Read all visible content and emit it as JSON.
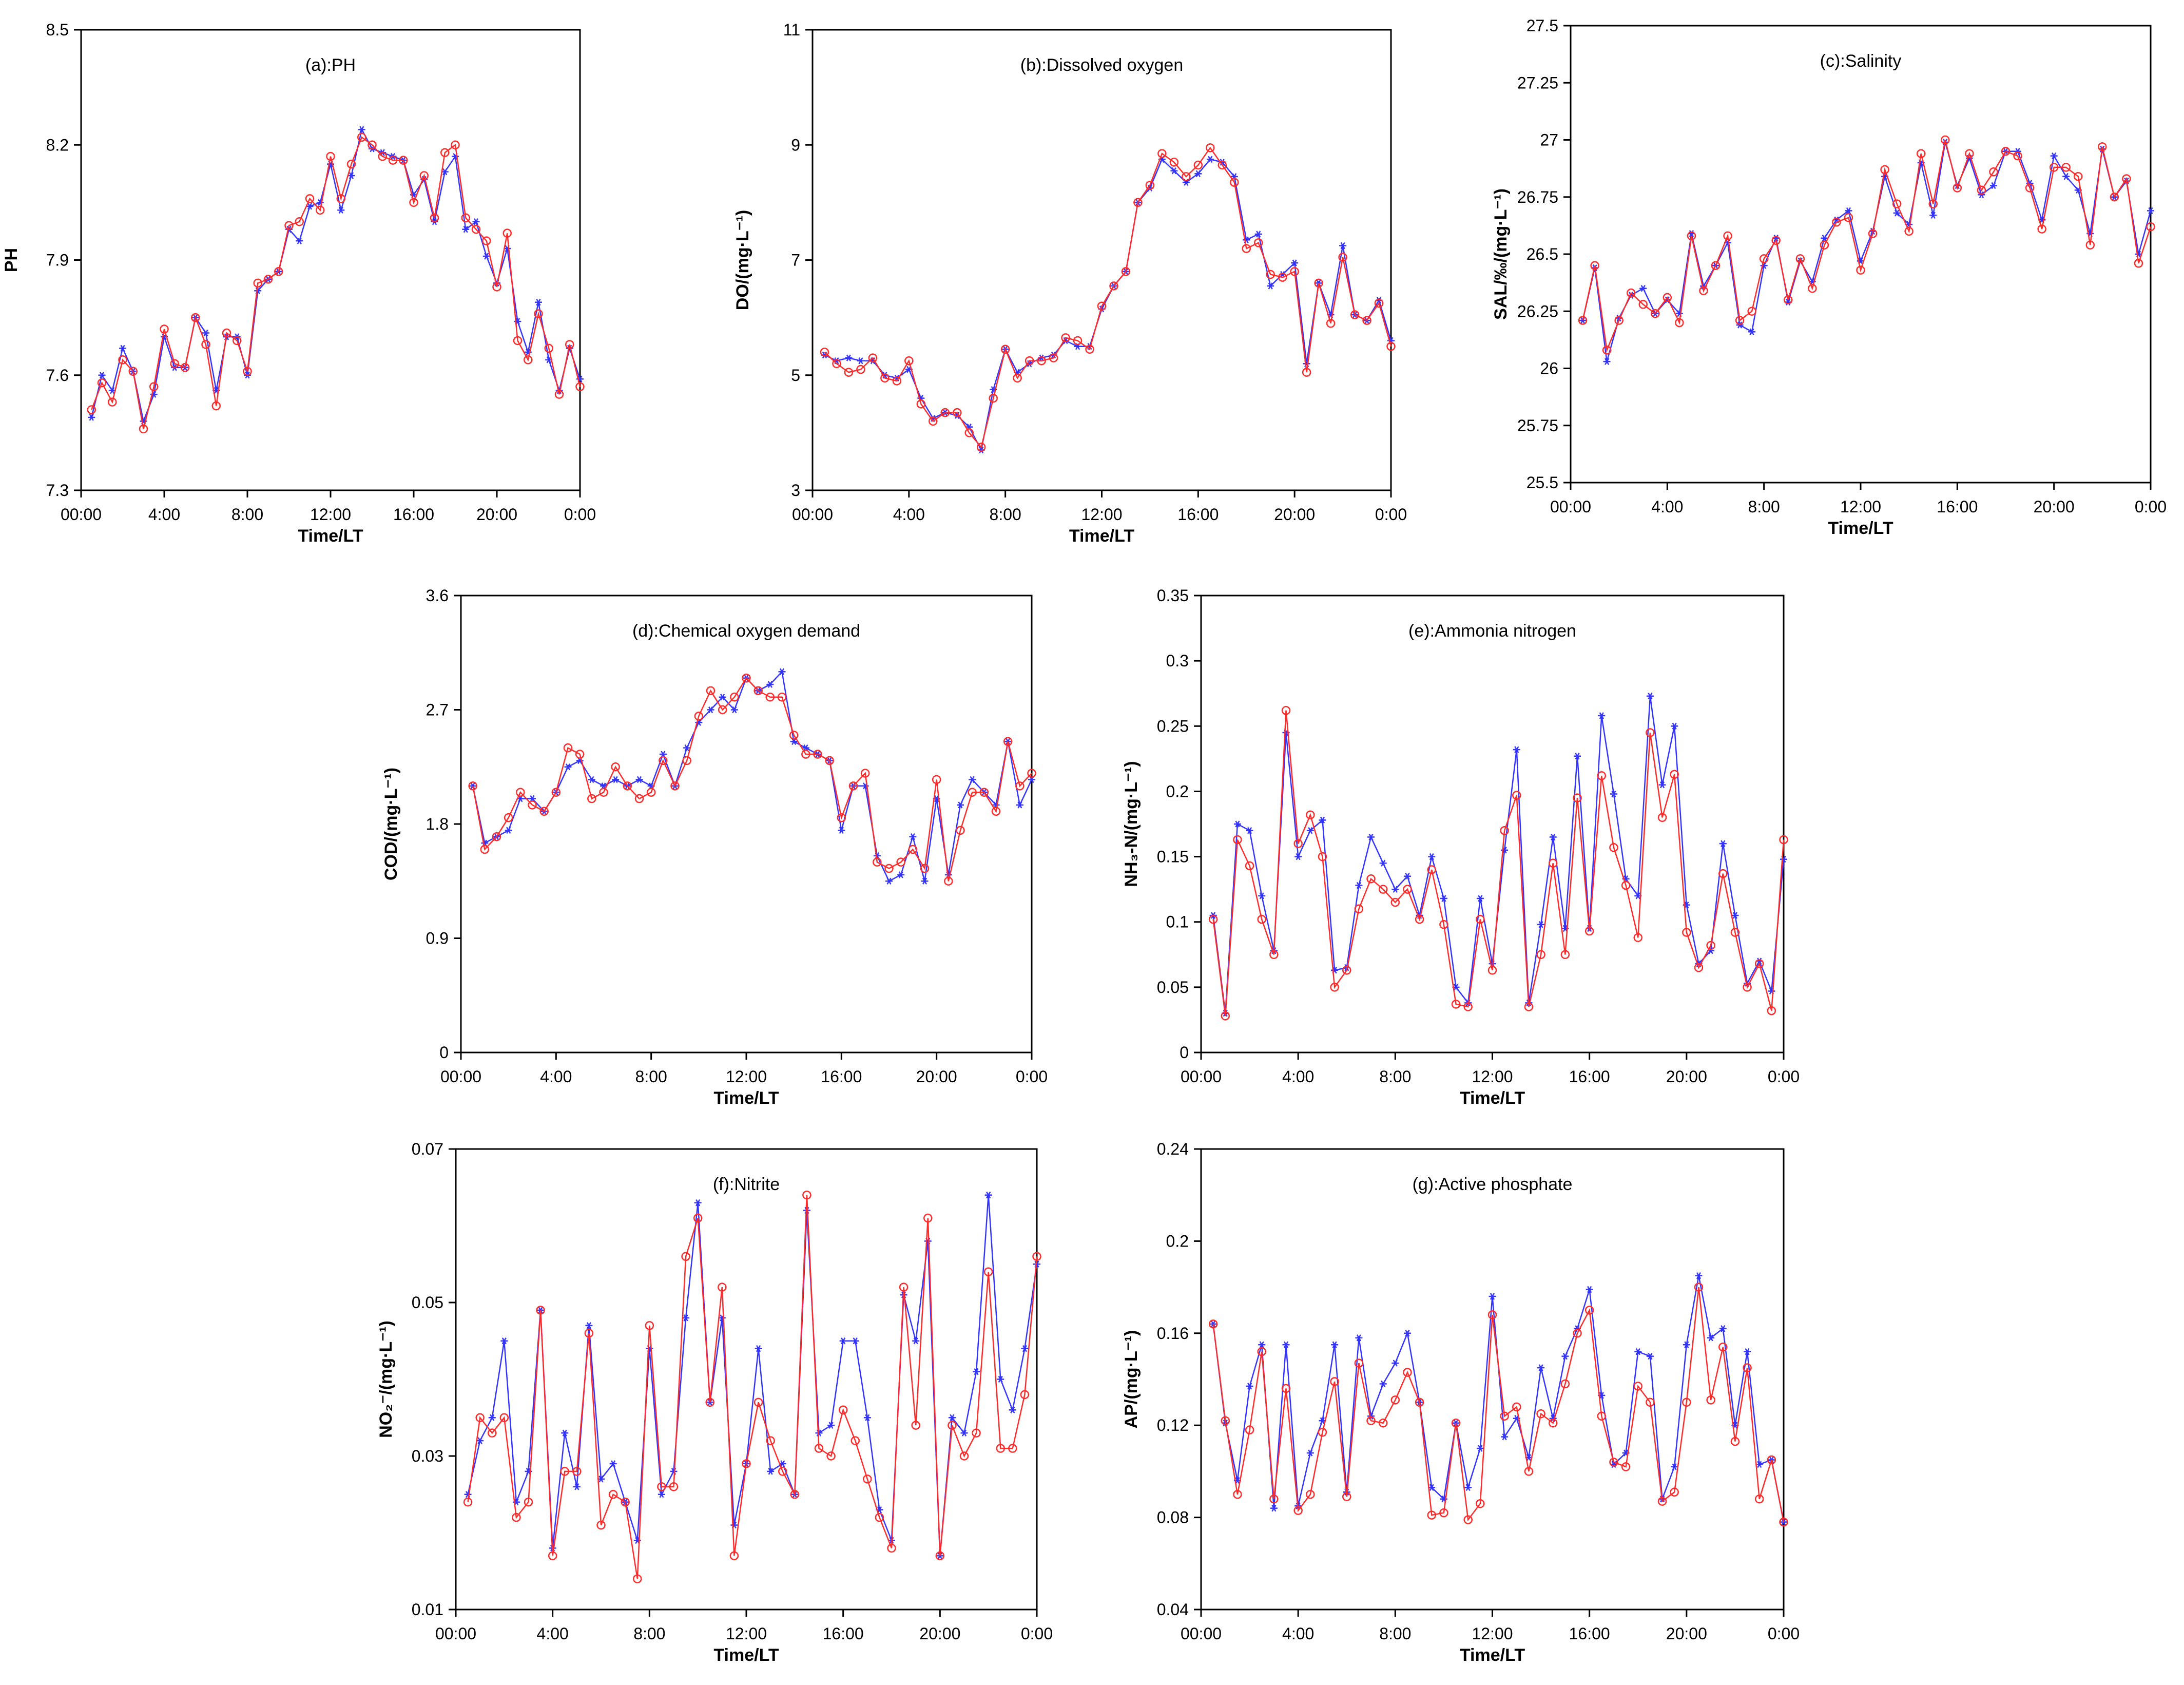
{
  "colors": {
    "observed": "#3333ff",
    "predicted": "#ff2a2a",
    "axis": "#000000"
  },
  "chart_data": [
    {
      "type": "line",
      "title": "(a):PH",
      "xlabel": "Time/LT",
      "ylabel": "PH",
      "xticks": [
        "00:00",
        "4:00",
        "8:00",
        "12:00",
        "16:00",
        "20:00",
        "0:00"
      ],
      "xlim": [
        0,
        24
      ],
      "ylim": [
        7.3,
        8.5
      ],
      "yticks": [
        7.3,
        7.6,
        7.9,
        8.2,
        8.5
      ],
      "ytick_labels": [
        "7.3",
        "7.6",
        "7.9",
        "8.2",
        "8.5"
      ],
      "series": [
        {
          "marker": "star",
          "color": "#3333ff",
          "values": [
            7.49,
            7.6,
            7.56,
            7.67,
            7.61,
            7.48,
            7.55,
            7.7,
            7.62,
            7.62,
            7.75,
            7.71,
            7.56,
            7.7,
            7.7,
            7.6,
            7.82,
            7.85,
            7.87,
            7.98,
            7.95,
            8.04,
            8.05,
            8.15,
            8.03,
            8.12,
            8.24,
            8.19,
            8.18,
            8.17,
            8.16,
            8.07,
            8.11,
            8.0,
            8.13,
            8.17,
            7.98,
            8.0,
            7.91,
            7.84,
            7.93,
            7.74,
            7.66,
            7.79,
            7.64,
            7.56,
            7.67,
            7.59
          ]
        },
        {
          "marker": "circle",
          "color": "#ff2a2a",
          "values": [
            7.51,
            7.58,
            7.53,
            7.64,
            7.61,
            7.46,
            7.57,
            7.72,
            7.63,
            7.62,
            7.75,
            7.68,
            7.52,
            7.71,
            7.69,
            7.61,
            7.84,
            7.85,
            7.87,
            7.99,
            8.0,
            8.06,
            8.03,
            8.17,
            8.06,
            8.15,
            8.22,
            8.2,
            8.17,
            8.16,
            8.16,
            8.05,
            8.12,
            8.01,
            8.18,
            8.2,
            8.01,
            7.98,
            7.95,
            7.83,
            7.97,
            7.69,
            7.64,
            7.76,
            7.67,
            7.55,
            7.68,
            7.57
          ]
        }
      ]
    },
    {
      "type": "line",
      "title": "(b):Dissolved oxygen",
      "xlabel": "Time/LT",
      "ylabel": "DO/(mg·L⁻¹)",
      "xticks": [
        "00:00",
        "4:00",
        "8:00",
        "12:00",
        "16:00",
        "20:00",
        "0:00"
      ],
      "xlim": [
        0,
        24
      ],
      "ylim": [
        3,
        11
      ],
      "yticks": [
        3,
        5,
        7,
        9,
        11
      ],
      "ytick_labels": [
        "3",
        "5",
        "7",
        "9",
        "11"
      ],
      "series": [
        {
          "marker": "star",
          "color": "#3333ff",
          "values": [
            5.35,
            5.25,
            5.3,
            5.25,
            5.25,
            5.0,
            4.95,
            5.1,
            4.6,
            4.25,
            4.35,
            4.3,
            4.1,
            3.7,
            4.75,
            5.45,
            5.05,
            5.2,
            5.3,
            5.35,
            5.6,
            5.5,
            5.5,
            6.15,
            6.55,
            6.8,
            8.0,
            8.25,
            8.75,
            8.55,
            8.35,
            8.5,
            8.75,
            8.7,
            8.45,
            7.35,
            7.45,
            6.55,
            6.75,
            6.95,
            5.2,
            6.6,
            6.05,
            7.25,
            6.05,
            5.95,
            6.3,
            5.6
          ]
        },
        {
          "marker": "circle",
          "color": "#ff2a2a",
          "values": [
            5.4,
            5.2,
            5.05,
            5.1,
            5.3,
            4.95,
            4.9,
            5.25,
            4.5,
            4.2,
            4.35,
            4.35,
            4.0,
            3.75,
            4.6,
            5.45,
            4.95,
            5.25,
            5.25,
            5.3,
            5.65,
            5.6,
            5.45,
            6.2,
            6.55,
            6.8,
            8.0,
            8.3,
            8.85,
            8.7,
            8.45,
            8.65,
            8.95,
            8.65,
            8.35,
            7.2,
            7.3,
            6.75,
            6.7,
            6.8,
            5.05,
            6.6,
            5.9,
            7.05,
            6.05,
            5.95,
            6.25,
            5.5
          ]
        }
      ]
    },
    {
      "type": "line",
      "title": "(c):Salinity",
      "xlabel": "Time/LT",
      "ylabel": "SAL/‰/(mg·L⁻¹)",
      "xticks": [
        "00:00",
        "4:00",
        "8:00",
        "12:00",
        "16:00",
        "20:00",
        "0:00"
      ],
      "xlim": [
        0,
        24
      ],
      "ylim": [
        25.5,
        27.5
      ],
      "yticks": [
        25.5,
        25.75,
        26,
        26.25,
        26.5,
        26.75,
        27,
        27.25,
        27.5
      ],
      "ytick_labels": [
        "25.5",
        "25.75",
        "26",
        "26.25",
        "26.5",
        "26.75",
        "27",
        "27.25",
        "27.5"
      ],
      "series": [
        {
          "marker": "star",
          "color": "#3333ff",
          "values": [
            26.21,
            26.44,
            26.03,
            26.22,
            26.32,
            26.35,
            26.24,
            26.3,
            26.24,
            26.59,
            26.36,
            26.45,
            26.55,
            26.19,
            26.16,
            26.45,
            26.57,
            26.29,
            26.47,
            26.38,
            26.57,
            26.65,
            26.69,
            26.47,
            26.6,
            26.84,
            26.68,
            26.63,
            26.9,
            26.67,
            26.99,
            26.8,
            26.92,
            26.76,
            26.8,
            26.95,
            26.95,
            26.81,
            26.65,
            26.93,
            26.84,
            26.78,
            26.59,
            26.96,
            26.75,
            26.82,
            26.5,
            26.69
          ]
        },
        {
          "marker": "circle",
          "color": "#ff2a2a",
          "values": [
            26.21,
            26.45,
            26.08,
            26.21,
            26.33,
            26.28,
            26.24,
            26.31,
            26.2,
            26.58,
            26.34,
            26.45,
            26.58,
            26.21,
            26.25,
            26.48,
            26.56,
            26.3,
            26.48,
            26.35,
            26.54,
            26.64,
            26.66,
            26.43,
            26.59,
            26.87,
            26.72,
            26.6,
            26.94,
            26.72,
            27.0,
            26.79,
            26.94,
            26.78,
            26.86,
            26.95,
            26.93,
            26.79,
            26.61,
            26.88,
            26.88,
            26.84,
            26.54,
            26.97,
            26.75,
            26.83,
            26.46,
            26.62
          ]
        }
      ]
    },
    {
      "type": "line",
      "title": "(d):Chemical oxygen demand",
      "xlabel": "Time/LT",
      "ylabel": "COD/(mg·L⁻¹)",
      "xticks": [
        "00:00",
        "4:00",
        "8:00",
        "12:00",
        "16:00",
        "20:00",
        "0:00"
      ],
      "xlim": [
        0,
        24
      ],
      "ylim": [
        0,
        3.6
      ],
      "yticks": [
        0,
        0.9,
        1.8,
        2.7,
        3.6
      ],
      "ytick_labels": [
        "0",
        "0.9",
        "1.8",
        "2.7",
        "3.6"
      ],
      "series": [
        {
          "marker": "star",
          "color": "#3333ff",
          "values": [
            2.1,
            1.65,
            1.7,
            1.75,
            2.0,
            2.0,
            1.9,
            2.05,
            2.25,
            2.3,
            2.15,
            2.1,
            2.15,
            2.1,
            2.15,
            2.1,
            2.35,
            2.1,
            2.4,
            2.6,
            2.7,
            2.8,
            2.7,
            2.95,
            2.85,
            2.9,
            3.0,
            2.45,
            2.4,
            2.35,
            2.3,
            1.75,
            2.1,
            2.1,
            1.55,
            1.35,
            1.4,
            1.7,
            1.35,
            2.0,
            1.4,
            1.95,
            2.15,
            2.05,
            1.95,
            2.45,
            1.95,
            2.15
          ]
        },
        {
          "marker": "circle",
          "color": "#ff2a2a",
          "values": [
            2.1,
            1.6,
            1.7,
            1.85,
            2.05,
            1.95,
            1.9,
            2.05,
            2.4,
            2.35,
            2.0,
            2.05,
            2.25,
            2.1,
            2.0,
            2.05,
            2.3,
            2.1,
            2.3,
            2.65,
            2.85,
            2.7,
            2.8,
            2.95,
            2.85,
            2.8,
            2.8,
            2.5,
            2.35,
            2.35,
            2.3,
            1.85,
            2.1,
            2.2,
            1.5,
            1.45,
            1.5,
            1.6,
            1.45,
            2.15,
            1.35,
            1.75,
            2.05,
            2.05,
            1.9,
            2.45,
            2.1,
            2.2
          ]
        }
      ]
    },
    {
      "type": "line",
      "title": "(e):Ammonia nitrogen",
      "xlabel": "Time/LT",
      "ylabel": "NH₃-N/(mg·L⁻¹)",
      "xticks": [
        "00:00",
        "4:00",
        "8:00",
        "12:00",
        "16:00",
        "20:00",
        "0:00"
      ],
      "xlim": [
        0,
        24
      ],
      "ylim": [
        0,
        0.35
      ],
      "yticks": [
        0,
        0.05,
        0.1,
        0.15,
        0.2,
        0.25,
        0.3,
        0.35
      ],
      "ytick_labels": [
        "0",
        "0.05",
        "0.1",
        "0.15",
        "0.2",
        "0.25",
        "0.3",
        "0.35"
      ],
      "series": [
        {
          "marker": "star",
          "color": "#3333ff",
          "values": [
            0.105,
            0.03,
            0.175,
            0.17,
            0.12,
            0.078,
            0.245,
            0.15,
            0.17,
            0.178,
            0.063,
            0.065,
            0.128,
            0.165,
            0.145,
            0.125,
            0.135,
            0.105,
            0.15,
            0.118,
            0.05,
            0.038,
            0.118,
            0.068,
            0.155,
            0.232,
            0.038,
            0.098,
            0.165,
            0.095,
            0.227,
            0.095,
            0.258,
            0.198,
            0.133,
            0.12,
            0.273,
            0.205,
            0.25,
            0.113,
            0.068,
            0.078,
            0.16,
            0.105,
            0.053,
            0.07,
            0.047,
            0.148
          ]
        },
        {
          "marker": "circle",
          "color": "#ff2a2a",
          "values": [
            0.102,
            0.028,
            0.163,
            0.143,
            0.102,
            0.075,
            0.262,
            0.16,
            0.182,
            0.15,
            0.05,
            0.063,
            0.11,
            0.133,
            0.125,
            0.115,
            0.125,
            0.102,
            0.14,
            0.098,
            0.037,
            0.035,
            0.102,
            0.063,
            0.17,
            0.197,
            0.035,
            0.075,
            0.145,
            0.075,
            0.195,
            0.093,
            0.212,
            0.157,
            0.128,
            0.088,
            0.245,
            0.18,
            0.213,
            0.092,
            0.065,
            0.082,
            0.137,
            0.092,
            0.05,
            0.068,
            0.032,
            0.163
          ]
        }
      ]
    },
    {
      "type": "line",
      "title": "(f):Nitrite",
      "xlabel": "Time/LT",
      "ylabel": "NO₂⁻/(mg·L⁻¹)",
      "xticks": [
        "00:00",
        "4:00",
        "8:00",
        "12:00",
        "16:00",
        "20:00",
        "0:00"
      ],
      "xlim": [
        0,
        24
      ],
      "ylim": [
        0.01,
        0.07
      ],
      "yticks": [
        0.01,
        0.03,
        0.05,
        0.07
      ],
      "ytick_labels": [
        "0.01",
        "0.03",
        "0.05",
        "0.07"
      ],
      "series": [
        {
          "marker": "star",
          "color": "#3333ff",
          "values": [
            0.025,
            0.032,
            0.035,
            0.045,
            0.024,
            0.028,
            0.049,
            0.018,
            0.033,
            0.026,
            0.047,
            0.027,
            0.029,
            0.024,
            0.019,
            0.044,
            0.025,
            0.028,
            0.048,
            0.063,
            0.037,
            0.048,
            0.021,
            0.029,
            0.044,
            0.028,
            0.029,
            0.025,
            0.062,
            0.033,
            0.034,
            0.045,
            0.045,
            0.035,
            0.023,
            0.019,
            0.051,
            0.045,
            0.058,
            0.017,
            0.035,
            0.033,
            0.041,
            0.064,
            0.04,
            0.036,
            0.044,
            0.055
          ]
        },
        {
          "marker": "circle",
          "color": "#ff2a2a",
          "values": [
            0.024,
            0.035,
            0.033,
            0.035,
            0.022,
            0.024,
            0.049,
            0.017,
            0.028,
            0.028,
            0.046,
            0.021,
            0.025,
            0.024,
            0.014,
            0.047,
            0.026,
            0.026,
            0.056,
            0.061,
            0.037,
            0.052,
            0.017,
            0.029,
            0.037,
            0.032,
            0.028,
            0.025,
            0.064,
            0.031,
            0.03,
            0.036,
            0.032,
            0.027,
            0.022,
            0.018,
            0.052,
            0.034,
            0.061,
            0.017,
            0.034,
            0.03,
            0.033,
            0.054,
            0.031,
            0.031,
            0.038,
            0.056
          ]
        }
      ]
    },
    {
      "type": "line",
      "title": "(g):Active phosphate",
      "xlabel": "Time/LT",
      "ylabel": "AP/(mg·L⁻¹)",
      "xticks": [
        "00:00",
        "4:00",
        "8:00",
        "12:00",
        "16:00",
        "20:00",
        "0:00"
      ],
      "xlim": [
        0,
        24
      ],
      "ylim": [
        0.04,
        0.24
      ],
      "yticks": [
        0.04,
        0.08,
        0.12,
        0.16,
        0.2,
        0.24
      ],
      "ytick_labels": [
        "0.04",
        "0.08",
        "0.12",
        "0.16",
        "0.2",
        "0.24"
      ],
      "series": [
        {
          "marker": "star",
          "color": "#3333ff",
          "values": [
            0.164,
            0.121,
            0.096,
            0.137,
            0.155,
            0.084,
            0.155,
            0.085,
            0.108,
            0.122,
            0.155,
            0.091,
            0.158,
            0.124,
            0.138,
            0.147,
            0.16,
            0.13,
            0.093,
            0.088,
            0.121,
            0.093,
            0.11,
            0.176,
            0.115,
            0.123,
            0.106,
            0.145,
            0.123,
            0.15,
            0.162,
            0.179,
            0.133,
            0.103,
            0.108,
            0.152,
            0.15,
            0.088,
            0.102,
            0.155,
            0.185,
            0.158,
            0.162,
            0.12,
            0.152,
            0.103,
            0.105,
            0.078
          ]
        },
        {
          "marker": "circle",
          "color": "#ff2a2a",
          "values": [
            0.164,
            0.122,
            0.09,
            0.118,
            0.152,
            0.088,
            0.136,
            0.083,
            0.09,
            0.117,
            0.139,
            0.089,
            0.147,
            0.122,
            0.121,
            0.131,
            0.143,
            0.13,
            0.081,
            0.082,
            0.121,
            0.079,
            0.086,
            0.168,
            0.124,
            0.128,
            0.1,
            0.125,
            0.121,
            0.138,
            0.16,
            0.17,
            0.124,
            0.104,
            0.102,
            0.137,
            0.13,
            0.087,
            0.091,
            0.13,
            0.18,
            0.131,
            0.154,
            0.113,
            0.145,
            0.088,
            0.105,
            0.078
          ]
        }
      ]
    }
  ]
}
